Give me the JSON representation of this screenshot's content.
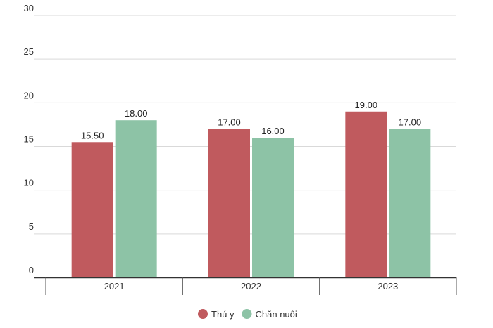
{
  "chart_data": {
    "type": "bar",
    "title": "",
    "xlabel": "",
    "ylabel": "",
    "ylim": [
      0,
      30
    ],
    "yticks": [
      0,
      5,
      10,
      15,
      20,
      25,
      30
    ],
    "grid": true,
    "legend_position": "bottom-center",
    "categories": [
      "2021",
      "2022",
      "2023"
    ],
    "series": [
      {
        "name": "Thú y",
        "color": "#c05a5e",
        "values": [
          15.5,
          17,
          19
        ],
        "labels": [
          "15.50",
          "17.00",
          "19.00"
        ]
      },
      {
        "name": "Chăn nuôi",
        "color": "#8dc3a6",
        "values": [
          18,
          16,
          17
        ],
        "labels": [
          "18.00",
          "16.00",
          "17.00"
        ]
      }
    ]
  }
}
